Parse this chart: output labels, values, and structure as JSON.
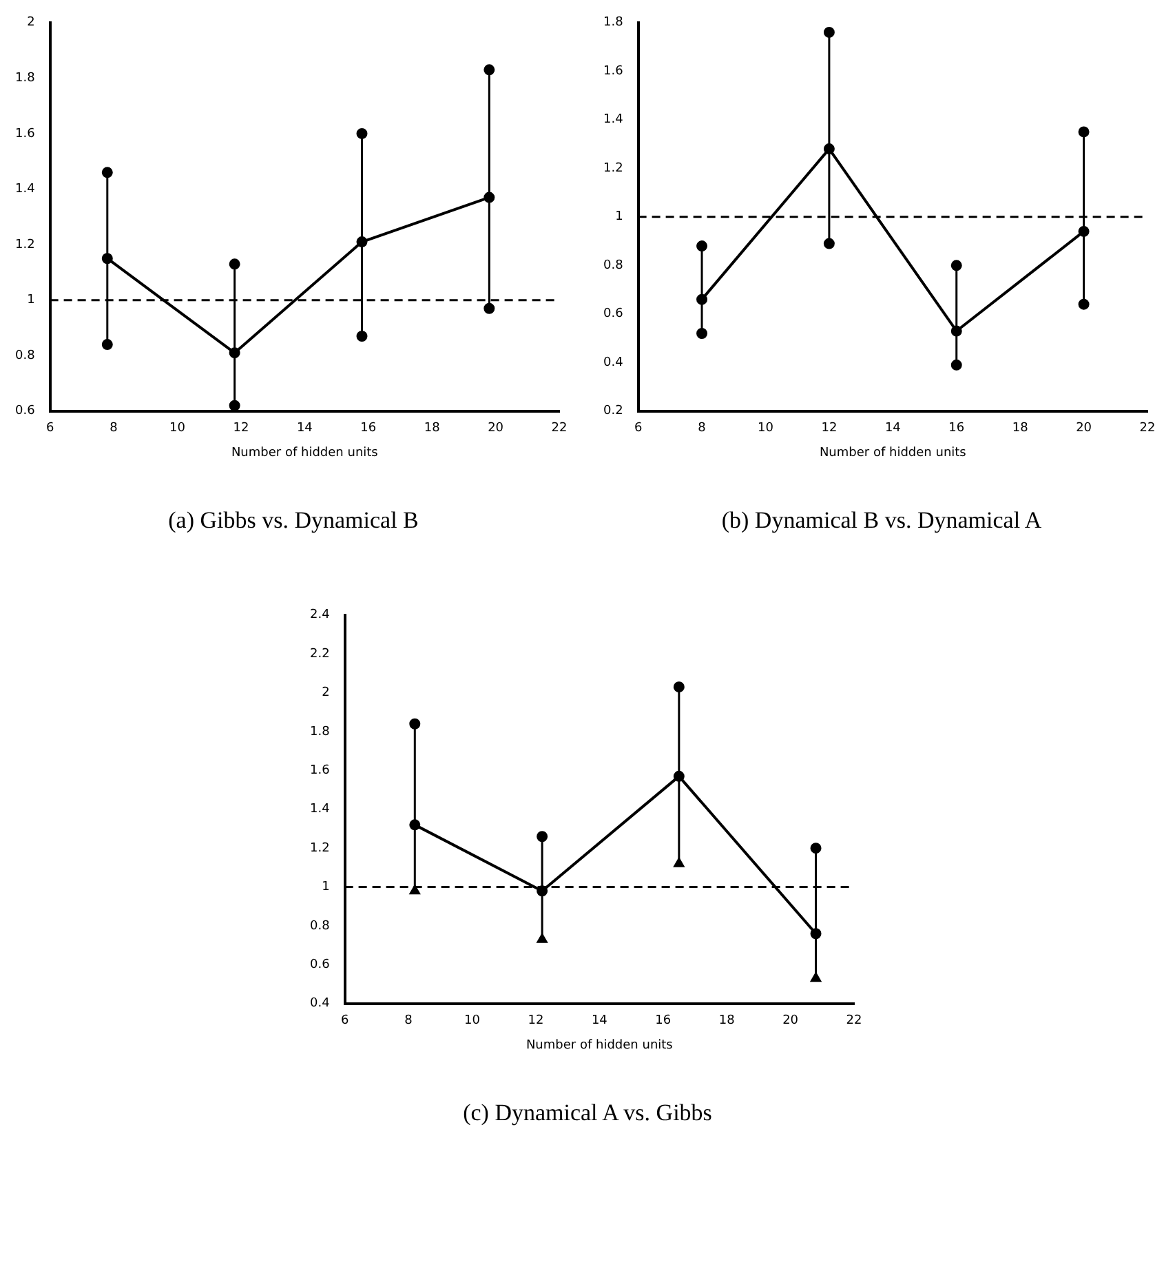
{
  "chart_data": [
    {
      "type": "line",
      "title": "(a) Gibbs vs. Dynamical B",
      "xlabel": "Number of hidden units",
      "marker": "circle",
      "grid": false,
      "legend": false,
      "x": [
        7.8,
        11.8,
        15.8,
        19.8
      ],
      "xlim": [
        6,
        22
      ],
      "xticks": [
        6,
        8,
        10,
        12,
        14,
        16,
        18,
        20,
        22
      ],
      "ylim": [
        0.6,
        2.0
      ],
      "yticks": [
        0.6,
        0.8,
        1,
        1.2,
        1.4,
        1.6,
        1.8,
        2.0
      ],
      "series": [
        {
          "color": "#000000",
          "values": [
            1.15,
            0.81,
            1.21,
            1.37
          ],
          "errors": [
            [
              0.84,
              1.46
            ],
            [
              0.62,
              1.13
            ],
            [
              0.87,
              1.6
            ],
            [
              0.97,
              1.83
            ]
          ]
        },
        {
          "type": "scatter",
          "color": "#000000",
          "values": [
            1.46,
            1.13,
            1.6,
            1.83
          ]
        },
        {
          "type": "scatter",
          "color": "#000000",
          "values": [
            0.84,
            0.62,
            0.87,
            0.97
          ]
        }
      ],
      "ref_lines": [
        {
          "axis": "y",
          "value": 1,
          "line_style": "dashed"
        }
      ]
    },
    {
      "type": "line",
      "title": "(b) Dynamical B vs. Dynamical A",
      "xlabel": "Number of hidden units",
      "marker": "circle",
      "grid": false,
      "legend": false,
      "x": [
        8,
        12,
        16,
        20
      ],
      "xlim": [
        6,
        22
      ],
      "xticks": [
        6,
        8,
        10,
        12,
        14,
        16,
        18,
        20,
        22
      ],
      "ylim": [
        0.2,
        1.8
      ],
      "yticks": [
        0.2,
        0.4,
        0.6,
        0.8,
        1,
        1.2,
        1.4,
        1.6,
        1.8
      ],
      "series": [
        {
          "color": "#000000",
          "values": [
            0.66,
            1.28,
            0.53,
            0.94
          ],
          "errors": [
            [
              0.52,
              0.88
            ],
            [
              0.89,
              1.76
            ],
            [
              0.39,
              0.8
            ],
            [
              0.64,
              1.35
            ]
          ]
        },
        {
          "type": "scatter",
          "color": "#000000",
          "values": [
            0.88,
            1.76,
            0.8,
            1.35
          ]
        },
        {
          "type": "scatter",
          "color": "#000000",
          "values": [
            0.52,
            0.89,
            0.39,
            0.64
          ]
        }
      ],
      "ref_lines": [
        {
          "axis": "y",
          "value": 1,
          "line_style": "dashed"
        }
      ]
    },
    {
      "type": "line",
      "title": "(c) Dynamical A vs. Gibbs",
      "xlabel": "Number of hidden units",
      "marker": "circle",
      "grid": false,
      "legend": false,
      "x": [
        8.2,
        12.2,
        16.5,
        20.8
      ],
      "xlim": [
        6,
        22
      ],
      "xticks": [
        6,
        8,
        10,
        12,
        14,
        16,
        18,
        20,
        22
      ],
      "ylim": [
        0.4,
        2.4
      ],
      "yticks": [
        0.4,
        0.6,
        0.8,
        1,
        1.2,
        1.4,
        1.6,
        1.8,
        2,
        2.2,
        2.4
      ],
      "series": [
        {
          "color": "#000000",
          "values": [
            1.32,
            0.98,
            1.57,
            0.76
          ],
          "errors": [
            [
              0.98,
              1.84
            ],
            [
              0.73,
              1.26
            ],
            [
              1.12,
              2.03
            ],
            [
              0.53,
              1.2
            ]
          ]
        },
        {
          "type": "scatter",
          "color": "#000000",
          "values": [
            1.84,
            1.26,
            2.03,
            1.2
          ]
        },
        {
          "type": "scatter",
          "color": "#000000",
          "marker": "triangle",
          "values": [
            0.98,
            0.73,
            1.12,
            0.53
          ]
        }
      ],
      "ref_lines": [
        {
          "axis": "y",
          "value": 1,
          "line_style": "dashed"
        }
      ]
    }
  ]
}
